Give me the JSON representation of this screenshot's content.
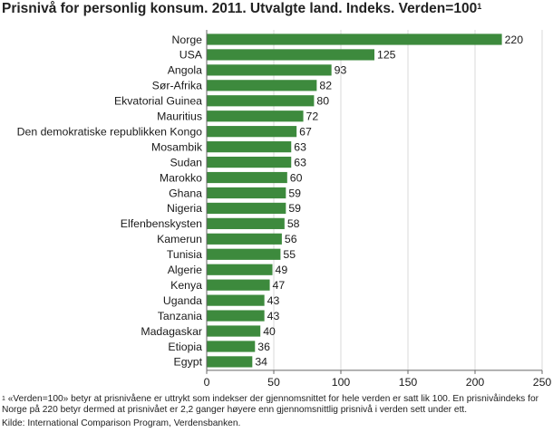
{
  "title": "Prisnivå for personlig konsum. 2011. Utvalgte land. Indeks. Verden=100",
  "title_superscript": "1",
  "colors": {
    "bar": "#3d8a3d",
    "grid": "#d8d8d8",
    "axis": "#666666",
    "text": "#1a1a1a"
  },
  "chart_data": {
    "type": "bar",
    "orientation": "horizontal",
    "categories": [
      "Norge",
      "USA",
      "Angola",
      "Sør-Afrika",
      "Ekvatorial Guinea",
      "Mauritius",
      "Den demokratiske republikken Kongo",
      "Mosambik",
      "Sudan",
      "Marokko",
      "Ghana",
      "Nigeria",
      "Elfenbenskysten",
      "Kamerun",
      "Tunisia",
      "Algerie",
      "Kenya",
      "Uganda",
      "Tanzania",
      "Madagaskar",
      "Etiopia",
      "Egypt"
    ],
    "values": [
      220,
      125,
      93,
      82,
      80,
      72,
      67,
      63,
      63,
      60,
      59,
      59,
      58,
      56,
      55,
      49,
      47,
      43,
      43,
      40,
      36,
      34
    ],
    "xlim": [
      0,
      250
    ],
    "xticks": [
      0,
      50,
      100,
      150,
      200,
      250
    ],
    "grid": true,
    "data_labels": true
  },
  "notes": {
    "footnote_marker": "1",
    "footnote": "«Verden=100» betyr at prisnivåene er uttrykt som indekser der gjennomsnittet for hele verden er satt lik 100. En prisnivåindeks for Norge på 220 betyr dermed at prisnivået er 2,2 ganger høyere enn gjennomsnittlig prisnivå i verden sett under ett.",
    "source": "Kilde: International Comparison Program, Verdensbanken."
  }
}
